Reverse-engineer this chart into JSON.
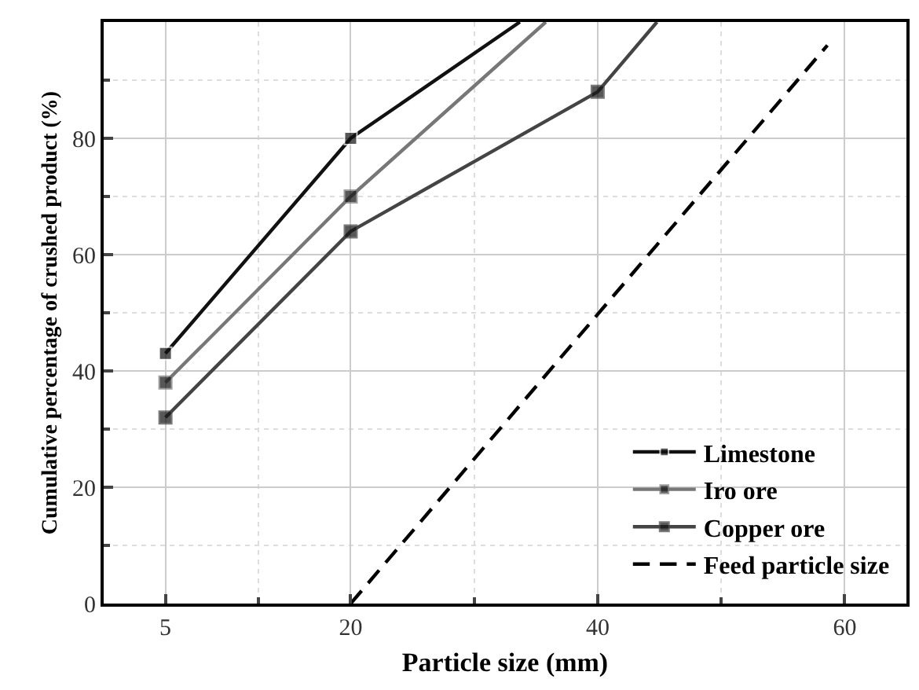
{
  "chart_data": {
    "type": "line",
    "xlabel": "Particle size (mm)",
    "ylabel": "Cumulative percentage of crushed product (%)",
    "xlim": [
      0,
      65
    ],
    "ylim": [
      0,
      100
    ],
    "xticks": [
      5,
      {
        "value": 12.5,
        "label": null
      },
      20,
      {
        "value": 30,
        "label": null
      },
      40,
      {
        "value": 50,
        "label": null
      },
      60
    ],
    "yticks": [
      0,
      {
        "value": 10,
        "label": null
      },
      20,
      {
        "value": 30,
        "label": null
      },
      40,
      {
        "value": 50,
        "label": null
      },
      60,
      {
        "value": 70,
        "label": null
      },
      80,
      {
        "value": 90,
        "label": null
      }
    ],
    "grid": true,
    "legend": "bottom right",
    "marker": "square",
    "series": [
      {
        "name": "Limestone",
        "color": "#111111",
        "x": [
          5,
          20,
          33.7
        ],
        "values": [
          43,
          80,
          100
        ]
      },
      {
        "name": "Iro ore",
        "color": "#777777",
        "x": [
          5,
          20,
          35.8
        ],
        "values": [
          38,
          70,
          100
        ]
      },
      {
        "name": "Copper ore",
        "color": "#444444",
        "x": [
          5,
          20,
          40,
          44.8
        ],
        "values": [
          32,
          64,
          88,
          100
        ]
      },
      {
        "name": "Feed particle size",
        "color": "#000000",
        "x": [
          20,
          58.6
        ],
        "values": [
          0,
          96
        ],
        "marker": "none",
        "line_style": "dashed"
      }
    ]
  }
}
